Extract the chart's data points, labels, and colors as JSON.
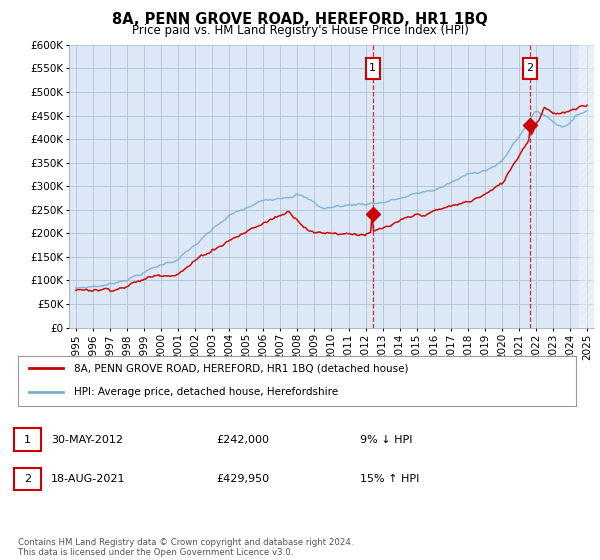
{
  "title": "8A, PENN GROVE ROAD, HEREFORD, HR1 1BQ",
  "subtitle": "Price paid vs. HM Land Registry's House Price Index (HPI)",
  "ylim": [
    0,
    600000
  ],
  "yticks": [
    0,
    50000,
    100000,
    150000,
    200000,
    250000,
    300000,
    350000,
    400000,
    450000,
    500000,
    550000,
    600000
  ],
  "xlim_start": 1994.6,
  "xlim_end": 2025.4,
  "hpi_color": "#7bafd4",
  "price_color": "#cc0000",
  "marker1_date": 2012.42,
  "marker1_price": 242000,
  "marker2_date": 2021.63,
  "marker2_price": 429950,
  "legend_line1": "8A, PENN GROVE ROAD, HEREFORD, HR1 1BQ (detached house)",
  "legend_line2": "HPI: Average price, detached house, Herefordshire",
  "table_row1": [
    "1",
    "30-MAY-2012",
    "£242,000",
    "9% ↓ HPI"
  ],
  "table_row2": [
    "2",
    "18-AUG-2021",
    "£429,950",
    "15% ↑ HPI"
  ],
  "footnote": "Contains HM Land Registry data © Crown copyright and database right 2024.\nThis data is licensed under the Open Government Licence v3.0.",
  "background_color": "#ffffff",
  "plot_bg_color": "#dce8f5",
  "grid_color": "#b0c4d8",
  "vline_color": "#cc0000"
}
